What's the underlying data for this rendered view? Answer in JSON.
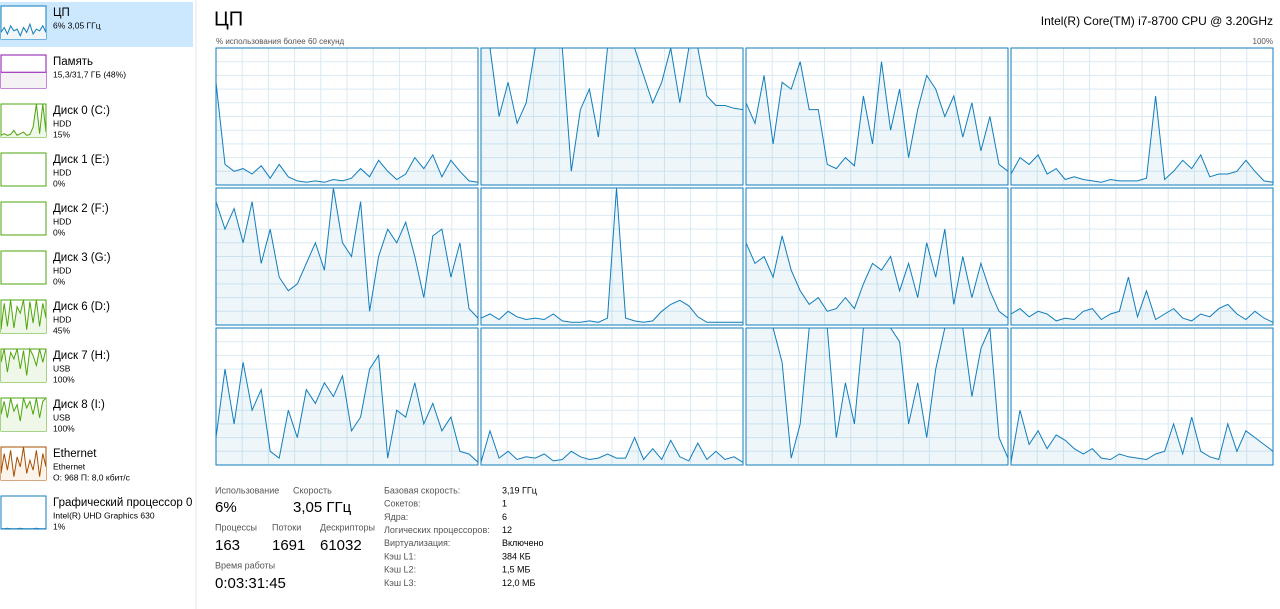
{
  "sidebar": {
    "items": [
      {
        "name": "ЦП",
        "lines": [
          "6% 3,05 ГГц"
        ],
        "color": "#117dbb",
        "fill": "#f1f6fa",
        "graph": [
          20,
          35,
          15,
          40,
          25,
          30,
          10,
          35,
          20,
          45,
          15,
          30,
          25,
          40,
          20
        ]
      },
      {
        "name": "Память",
        "lines": [
          "15,3/31,7 ГБ (48%)"
        ],
        "color": "#8b12ae",
        "fill": "#f4f2f4",
        "graph": [
          48,
          48,
          48,
          48,
          48,
          48,
          48,
          48,
          48,
          48,
          48,
          48,
          48,
          48,
          48
        ]
      },
      {
        "name": "Диск 0 (C:)",
        "lines": [
          "HDD",
          "15%"
        ],
        "color": "#4da60c",
        "fill": "#eff7e8",
        "graph": [
          5,
          10,
          5,
          8,
          20,
          5,
          10,
          15,
          5,
          8,
          30,
          100,
          10,
          100,
          15
        ]
      },
      {
        "name": "Диск 1 (E:)",
        "lines": [
          "HDD",
          "0%"
        ],
        "color": "#4da60c",
        "fill": "#eff7e8",
        "graph": [
          0,
          0,
          0,
          0,
          0,
          0,
          0,
          0,
          0,
          0,
          0,
          0,
          0,
          0,
          0
        ]
      },
      {
        "name": "Диск 2 (F:)",
        "lines": [
          "HDD",
          "0%"
        ],
        "color": "#4da60c",
        "fill": "#eff7e8",
        "graph": [
          0,
          0,
          0,
          0,
          0,
          0,
          0,
          0,
          0,
          0,
          0,
          0,
          0,
          0,
          0
        ]
      },
      {
        "name": "Диск 3 (G:)",
        "lines": [
          "HDD",
          "0%"
        ],
        "color": "#4da60c",
        "fill": "#eff7e8",
        "graph": [
          0,
          0,
          0,
          0,
          0,
          0,
          0,
          0,
          0,
          0,
          0,
          0,
          0,
          0,
          0
        ]
      },
      {
        "name": "Диск 6 (D:)",
        "lines": [
          "HDD",
          "45%"
        ],
        "color": "#4da60c",
        "fill": "#eff7e8",
        "graph": [
          10,
          90,
          20,
          100,
          15,
          80,
          60,
          100,
          10,
          95,
          30,
          100,
          20,
          90,
          45
        ]
      },
      {
        "name": "Диск 7 (H:)",
        "lines": [
          "USB",
          "100%"
        ],
        "color": "#4da60c",
        "fill": "#eff7e8",
        "graph": [
          60,
          100,
          30,
          90,
          70,
          100,
          40,
          95,
          20,
          100,
          80,
          50,
          100,
          60,
          100
        ]
      },
      {
        "name": "Диск 8 (I:)",
        "lines": [
          "USB",
          "100%"
        ],
        "color": "#4da60c",
        "fill": "#eff7e8",
        "graph": [
          50,
          90,
          40,
          100,
          60,
          80,
          30,
          100,
          70,
          90,
          50,
          100,
          40,
          90,
          100
        ]
      },
      {
        "name": "Ethernet",
        "lines": [
          "Ethernet",
          "О: 968 П: 8,0 кбит/с"
        ],
        "color": "#a74f01",
        "fill": "#fcf3eb",
        "graph": [
          20,
          80,
          30,
          90,
          10,
          70,
          40,
          100,
          20,
          60,
          30,
          90,
          10,
          80,
          40
        ]
      },
      {
        "name": "Графический процессор 0",
        "lines": [
          "Intel(R) UHD Graphics 630",
          "1%"
        ],
        "color": "#117dbb",
        "fill": "#f1f6fa",
        "graph": [
          1,
          1,
          2,
          1,
          1,
          1,
          2,
          1,
          1,
          1,
          1,
          2,
          1,
          1,
          1
        ]
      }
    ]
  },
  "header": {
    "title": "ЦП",
    "cpu_model": "Intel(R) Core(TM) i7-8700 CPU @ 3.20GHz",
    "graph_caption": "% использования более 60 секунд",
    "graph_max": {
      "value": 100,
      "label": "100%"
    }
  },
  "cores": [
    [
      75,
      15,
      10,
      12,
      8,
      14,
      5,
      15,
      6,
      3,
      2,
      3,
      2,
      4,
      3,
      5,
      12,
      6,
      18,
      10,
      4,
      8,
      20,
      12,
      22,
      6,
      18,
      10,
      3,
      2
    ],
    [
      100,
      100,
      50,
      75,
      45,
      60,
      100,
      100,
      100,
      100,
      10,
      55,
      70,
      35,
      100,
      100,
      100,
      100,
      80,
      60,
      75,
      100,
      60,
      100,
      100,
      65,
      58,
      58,
      56,
      55
    ],
    [
      60,
      45,
      80,
      30,
      75,
      70,
      90,
      55,
      55,
      15,
      12,
      20,
      14,
      65,
      30,
      90,
      40,
      70,
      20,
      55,
      80,
      70,
      50,
      65,
      35,
      60,
      25,
      50,
      15,
      10
    ],
    [
      8,
      20,
      15,
      22,
      8,
      12,
      4,
      6,
      4,
      3,
      2,
      4,
      3,
      3,
      3,
      5,
      65,
      4,
      10,
      18,
      12,
      22,
      6,
      8,
      8,
      10,
      18,
      10,
      3,
      2
    ],
    [
      90,
      70,
      85,
      60,
      90,
      45,
      70,
      35,
      25,
      30,
      45,
      60,
      40,
      100,
      60,
      50,
      90,
      10,
      50,
      70,
      60,
      75,
      50,
      20,
      65,
      70,
      35,
      60,
      12,
      5
    ],
    [
      5,
      8,
      4,
      10,
      6,
      4,
      5,
      4,
      8,
      3,
      2,
      2,
      3,
      2,
      5,
      100,
      5,
      3,
      2,
      3,
      10,
      15,
      18,
      14,
      6,
      2,
      2,
      2,
      2,
      2
    ],
    [
      60,
      45,
      50,
      35,
      65,
      40,
      25,
      15,
      20,
      10,
      12,
      20,
      12,
      30,
      45,
      40,
      50,
      25,
      45,
      20,
      60,
      35,
      70,
      15,
      50,
      20,
      45,
      25,
      10,
      5
    ],
    [
      8,
      12,
      6,
      10,
      8,
      3,
      5,
      4,
      10,
      12,
      4,
      8,
      10,
      35,
      6,
      25,
      4,
      8,
      12,
      5,
      3,
      8,
      6,
      12,
      15,
      8,
      4,
      10,
      5,
      2
    ],
    [
      20,
      70,
      30,
      75,
      40,
      55,
      10,
      5,
      40,
      20,
      55,
      45,
      60,
      50,
      65,
      25,
      35,
      70,
      80,
      5,
      40,
      35,
      60,
      30,
      45,
      25,
      35,
      10,
      8,
      2
    ],
    [
      2,
      25,
      5,
      10,
      4,
      6,
      5,
      8,
      3,
      4,
      10,
      6,
      4,
      5,
      8,
      5,
      5,
      20,
      4,
      12,
      4,
      18,
      6,
      3,
      16,
      4,
      10,
      4,
      6,
      2
    ],
    [
      100,
      100,
      100,
      100,
      75,
      5,
      30,
      100,
      100,
      100,
      20,
      60,
      30,
      100,
      100,
      100,
      100,
      90,
      30,
      60,
      20,
      70,
      100,
      100,
      100,
      50,
      85,
      100,
      20,
      5
    ],
    [
      2,
      40,
      15,
      25,
      12,
      22,
      18,
      12,
      8,
      12,
      5,
      4,
      8,
      6,
      5,
      4,
      8,
      10,
      30,
      8,
      35,
      10,
      6,
      4,
      30,
      10,
      25,
      20,
      15,
      10
    ]
  ],
  "stats": {
    "usage_label": "Использование",
    "usage": "6%",
    "speed_label": "Скорость",
    "speed": "3,05 ГГц",
    "processes_label": "Процессы",
    "processes": "163",
    "threads_label": "Потоки",
    "threads": "1691",
    "handles_label": "Дескрипторы",
    "handles": "61032",
    "uptime_label": "Время работы",
    "uptime": "0:03:31:45"
  },
  "properties": [
    {
      "label": "Базовая скорость:",
      "value": "3,19 ГГц"
    },
    {
      "label": "Сокетов:",
      "value": "1"
    },
    {
      "label": "Ядра:",
      "value": "6"
    },
    {
      "label": "Логических процессоров:",
      "value": "12"
    },
    {
      "label": "Виртуализация:",
      "value": "Включено"
    },
    {
      "label": "Кэш L1:",
      "value": "384 КБ"
    },
    {
      "label": "Кэш L2:",
      "value": "1,5 МБ"
    },
    {
      "label": "Кэш L3:",
      "value": "12,0 МБ"
    }
  ]
}
